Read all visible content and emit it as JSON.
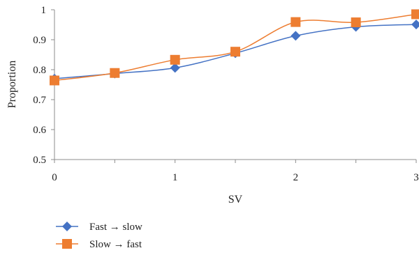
{
  "chart_data": {
    "type": "line",
    "xlabel": "SV",
    "ylabel": "Proportion",
    "xlim": [
      0,
      3
    ],
    "ylim": [
      0.5,
      1
    ],
    "x_ticks": [
      "0",
      "0.5",
      "1",
      "1.5",
      "2",
      "2.5",
      "3"
    ],
    "x_tick_labels": [
      "0",
      "",
      "1",
      "",
      "2",
      "",
      "3"
    ],
    "y_ticks": [
      "0.5",
      "0.6",
      "0.7",
      "0.8",
      "0.9",
      "1"
    ],
    "grid": false,
    "smooth": true,
    "legend_position": "bottom-left",
    "x": [
      0,
      0.5,
      1,
      1.5,
      2,
      2.5,
      3
    ],
    "series": [
      {
        "name": "Fast → slow",
        "values": [
          0.77,
          0.787,
          0.806,
          0.855,
          0.913,
          0.943,
          0.951
        ],
        "color": "#4472c4",
        "marker": "diamond"
      },
      {
        "name": "Slow → fast",
        "values": [
          0.764,
          0.789,
          0.833,
          0.86,
          0.959,
          0.958,
          0.985
        ],
        "color": "#ed7d31",
        "marker": "square"
      }
    ]
  }
}
